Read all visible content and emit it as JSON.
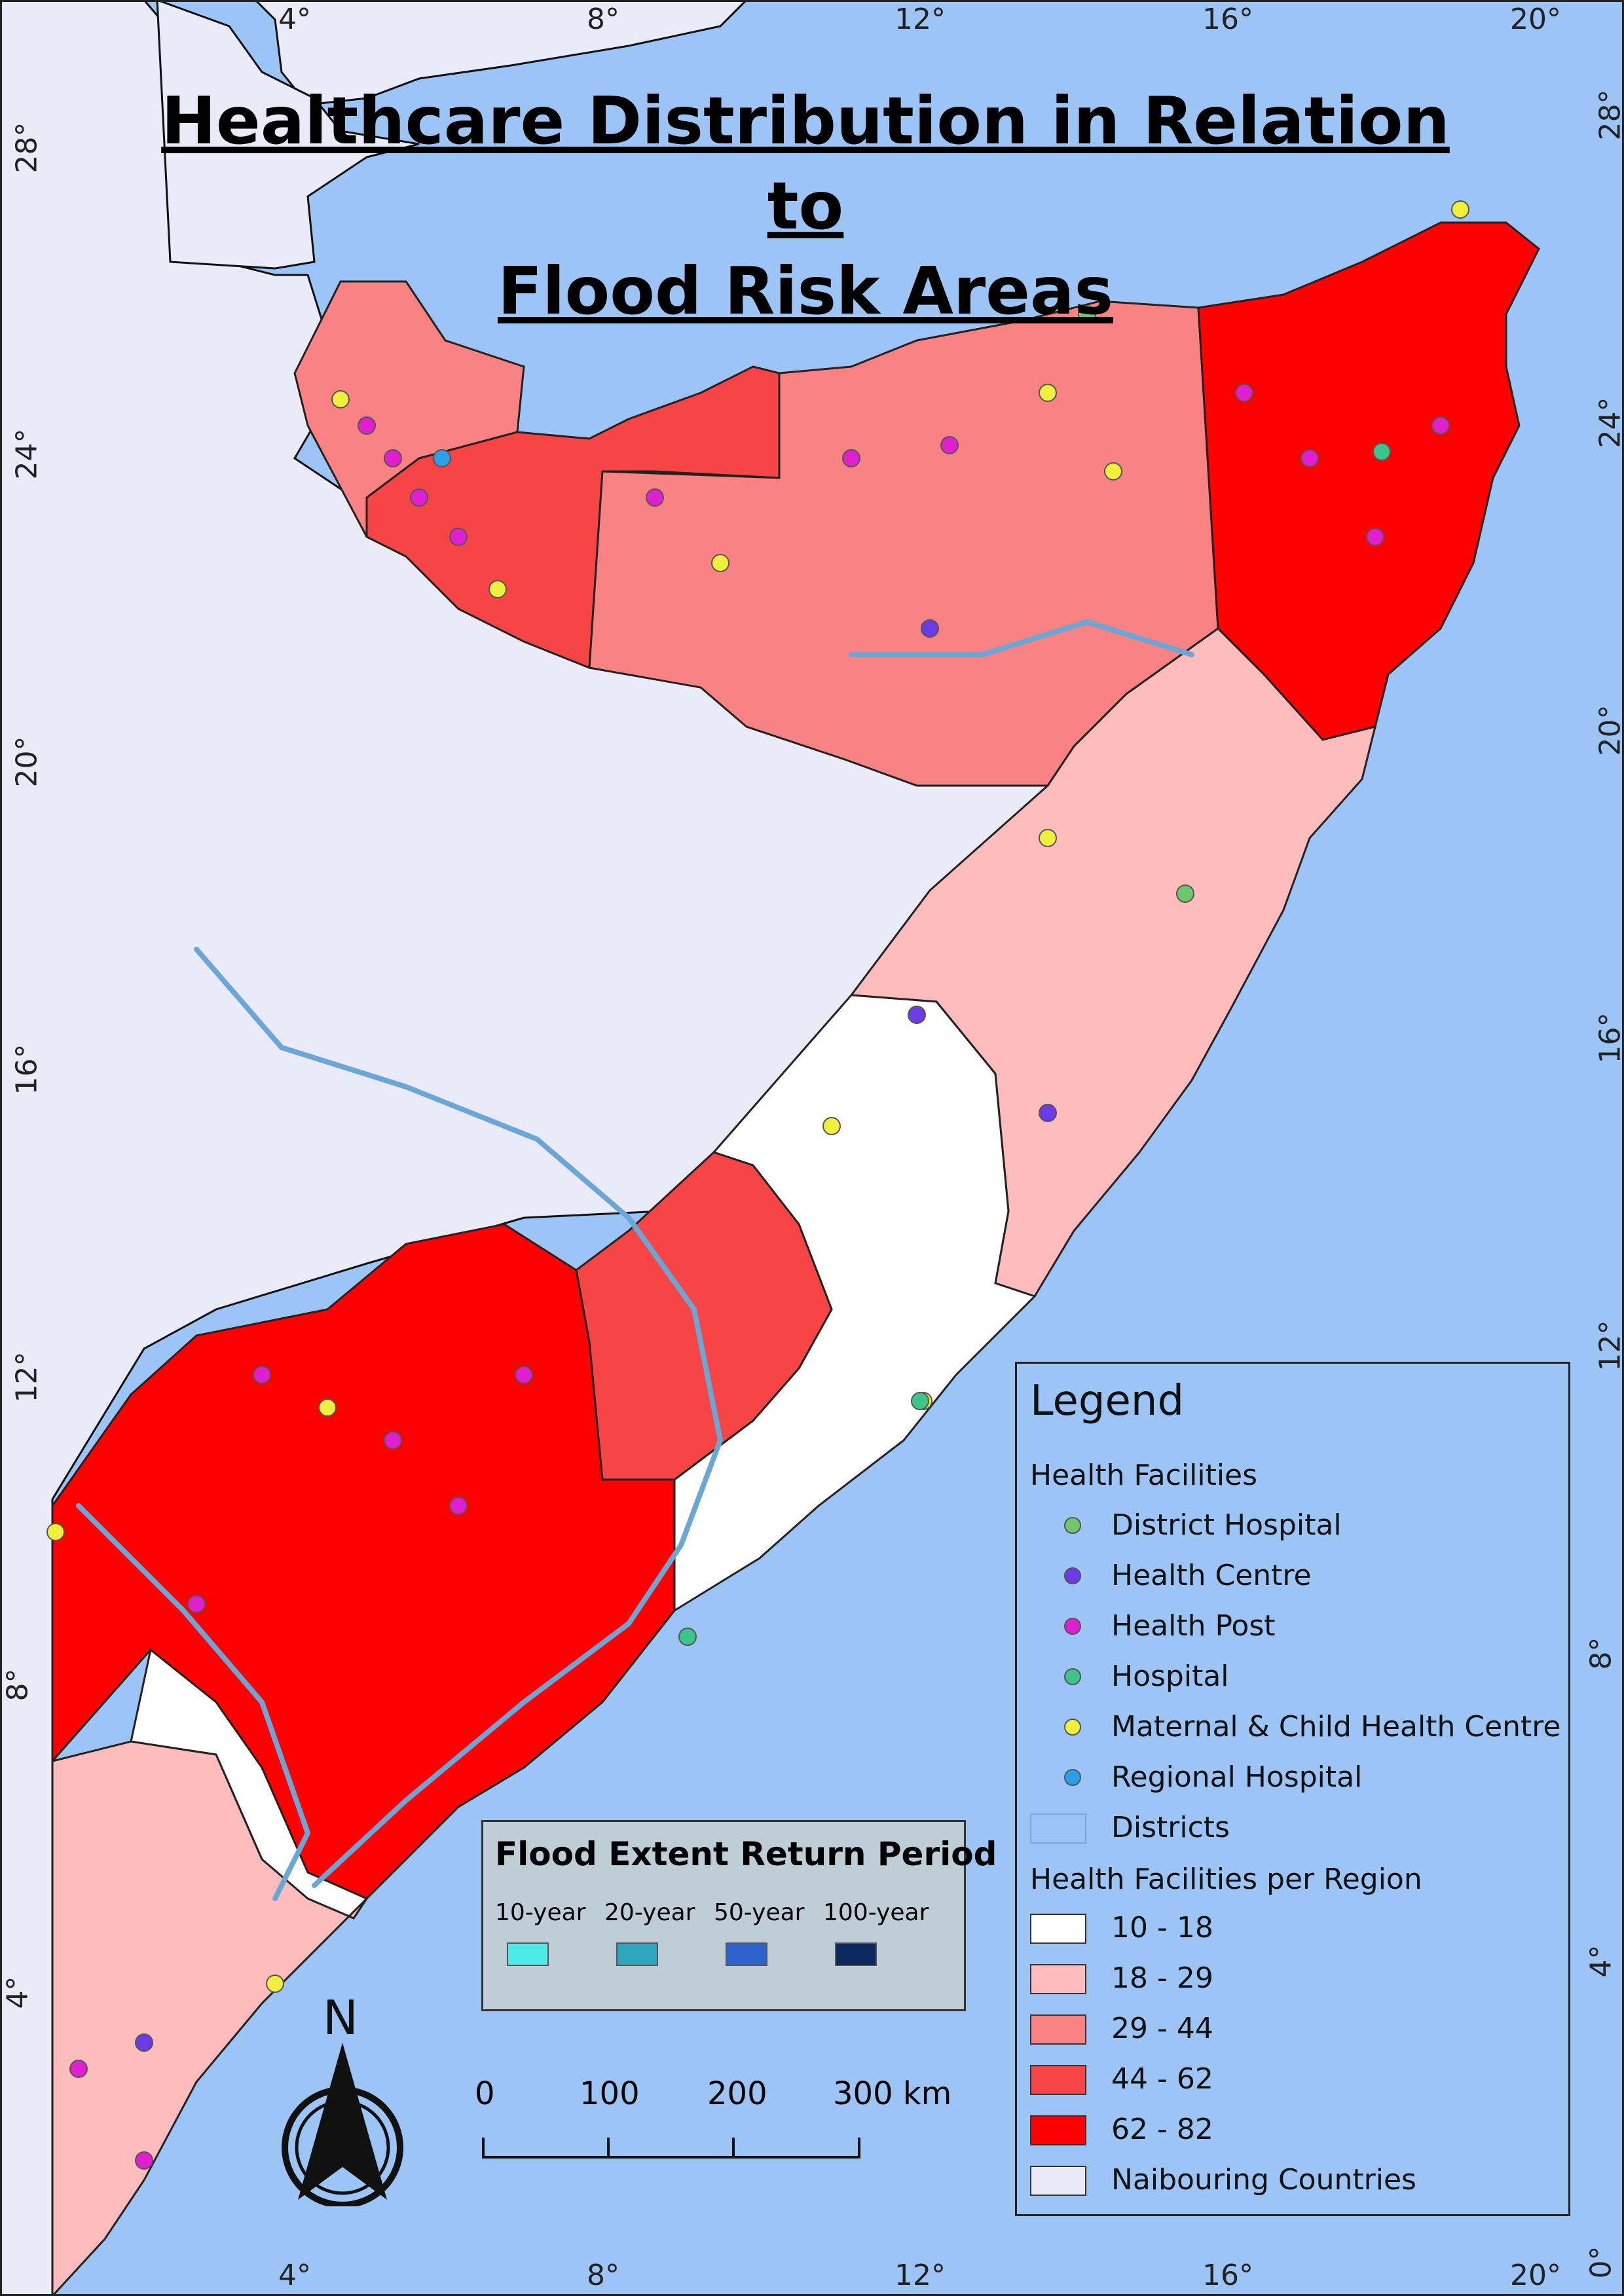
{
  "title": {
    "line1": "Healthcare Distribution in Relation to",
    "line2": "Flood Risk Areas"
  },
  "colors": {
    "sea": "#9cc4f5",
    "neighbouring": "#eaeaf8",
    "class_10_18": "#ffffff",
    "class_18_29": "#ffbcbc",
    "class_29_44": "#f98382",
    "class_44_62": "#f74545",
    "class_62_82": "#ff0000",
    "flood_10": "#4de8e8",
    "flood_20": "#2ea6bd",
    "flood_50": "#2e62cc",
    "flood_100": "#0a2a5e",
    "district_hospital": "#6ec66e",
    "health_centre": "#6a3ce6",
    "health_post": "#e020d0",
    "hospital": "#3cc48a",
    "maternal": "#f0f03c",
    "regional_hospital": "#2aa0e8"
  },
  "legend": {
    "heading": "Legend",
    "facilities_heading": "Health Facilities",
    "facilities": [
      {
        "label": "District Hospital",
        "color": "#6ec66e"
      },
      {
        "label": "Health Centre",
        "color": "#6a3ce6"
      },
      {
        "label": "Health Post",
        "color": "#e020d0"
      },
      {
        "label": "Hospital",
        "color": "#3cc48a"
      },
      {
        "label": "Maternal & Child Health Centre",
        "color": "#f0f03c"
      },
      {
        "label": "Regional Hospital",
        "color": "#2aa0e8"
      }
    ],
    "districts_label": "Districts",
    "per_region_heading": "Health Facilities per Region",
    "classes": [
      {
        "label": "10 - 18",
        "color": "#ffffff"
      },
      {
        "label": "18 - 29",
        "color": "#ffbcbc"
      },
      {
        "label": "29 - 44",
        "color": "#f98382"
      },
      {
        "label": "44 - 62",
        "color": "#f74545"
      },
      {
        "label": "62 - 82",
        "color": "#ff0000"
      }
    ],
    "neighbouring_label": "Naibouring Countries"
  },
  "flood": {
    "title": "Flood Extent Return Period",
    "periods": [
      {
        "label": "10-year",
        "color": "#4de8e8"
      },
      {
        "label": "20-year",
        "color": "#2ea6bd"
      },
      {
        "label": "50-year",
        "color": "#2e62cc"
      },
      {
        "label": "100-year",
        "color": "#0a2a5e"
      }
    ]
  },
  "scale": {
    "labels": [
      "0",
      "100",
      "200",
      "300 km"
    ]
  },
  "north": {
    "label": "N"
  },
  "grid": {
    "lon_labels": [
      "4°",
      "8°",
      "12°",
      "16°",
      "20°"
    ],
    "lat_labels": [
      "28°",
      "24°",
      "20°",
      "16°",
      "12°",
      "8°",
      "4°",
      "0°"
    ]
  }
}
